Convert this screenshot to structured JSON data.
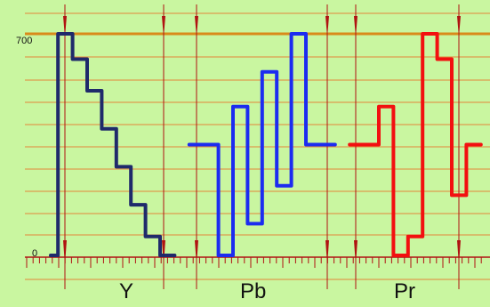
{
  "chart_data": {
    "type": "line",
    "y_ticks": [
      {
        "label": "700",
        "value": 700
      },
      {
        "label": "0",
        "value": 0
      }
    ],
    "ylim": [
      -40,
      780
    ],
    "grid": true,
    "component_labels": [
      "Y",
      "Pb",
      "Pr"
    ],
    "series": [
      {
        "name": "Y",
        "color": "#1f2a6b",
        "points": [
          [
            0,
            0
          ],
          [
            0.5,
            0
          ],
          [
            0.5,
            700
          ],
          [
            1.5,
            700
          ],
          [
            1.5,
            620
          ],
          [
            2.5,
            620
          ],
          [
            2.5,
            520
          ],
          [
            3.5,
            520
          ],
          [
            3.5,
            400
          ],
          [
            4.5,
            400
          ],
          [
            4.5,
            280
          ],
          [
            5.5,
            280
          ],
          [
            5.5,
            160
          ],
          [
            6.5,
            160
          ],
          [
            6.5,
            60
          ],
          [
            7.5,
            60
          ],
          [
            7.5,
            0
          ],
          [
            8.5,
            0
          ]
        ]
      },
      {
        "name": "Pb",
        "color": "#1c2cf0",
        "points": [
          [
            9.5,
            350
          ],
          [
            11.5,
            350
          ],
          [
            11.5,
            0
          ],
          [
            12.5,
            0
          ],
          [
            12.5,
            470
          ],
          [
            13.5,
            470
          ],
          [
            13.5,
            100
          ],
          [
            14.5,
            100
          ],
          [
            14.5,
            580
          ],
          [
            15.5,
            580
          ],
          [
            15.5,
            220
          ],
          [
            16.5,
            220
          ],
          [
            16.5,
            700
          ],
          [
            17.5,
            700
          ],
          [
            17.5,
            350
          ],
          [
            19.5,
            350
          ]
        ]
      },
      {
        "name": "Pr",
        "color": "#f21010",
        "points": [
          [
            20.5,
            350
          ],
          [
            22.5,
            350
          ],
          [
            22.5,
            470
          ],
          [
            23.5,
            470
          ],
          [
            23.5,
            0
          ],
          [
            24.5,
            0
          ],
          [
            24.5,
            60
          ],
          [
            25.5,
            60
          ],
          [
            25.5,
            700
          ],
          [
            26.5,
            700
          ],
          [
            26.5,
            620
          ],
          [
            27.5,
            620
          ],
          [
            27.5,
            190
          ],
          [
            28.5,
            190
          ],
          [
            28.5,
            350
          ],
          [
            29.5,
            350
          ]
        ]
      }
    ],
    "colors": {
      "background": "#c9f6a0",
      "grid": "#e3873a",
      "top_line": "#d98a1a",
      "marker": "#b01212",
      "text": "#111111"
    }
  }
}
